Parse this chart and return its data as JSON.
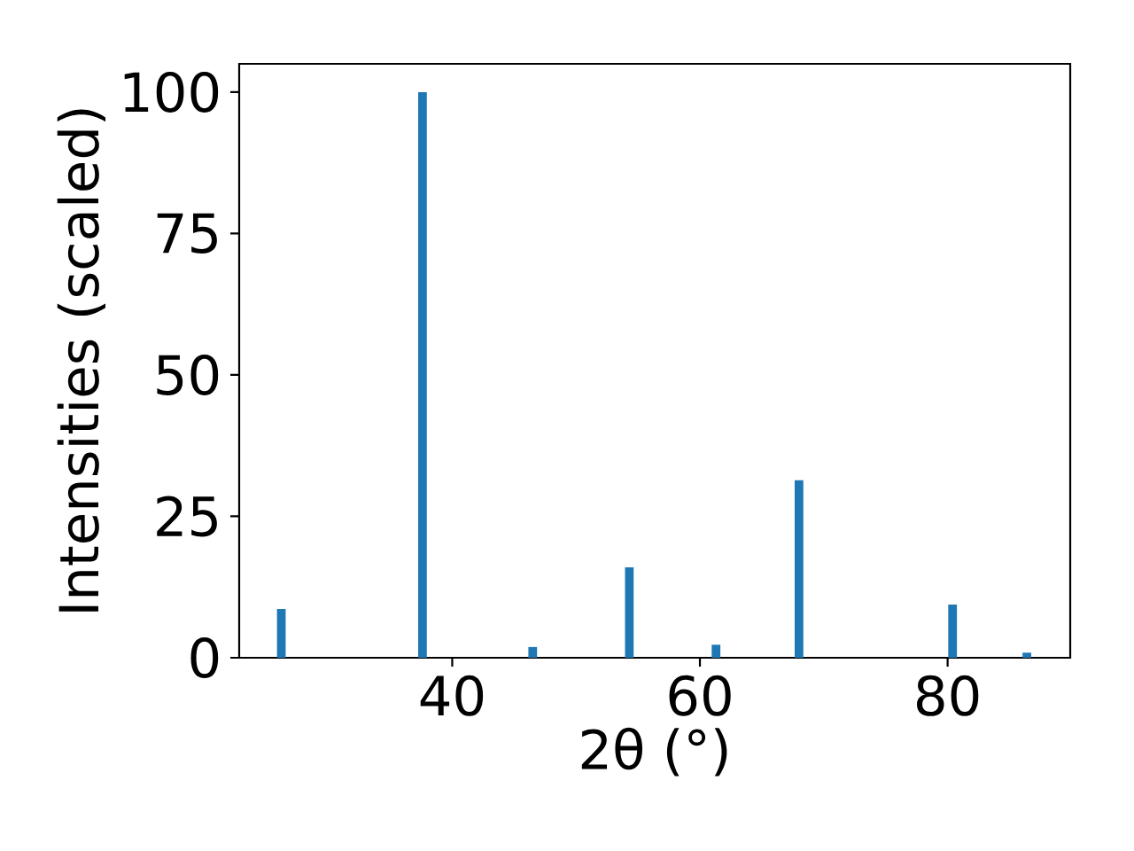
{
  "chart_data": {
    "type": "bar",
    "xlabel": "2θ (°)",
    "ylabel": "Intensities (scaled)",
    "x": [
      26.2,
      37.6,
      46.5,
      54.3,
      61.3,
      68.0,
      80.4,
      86.4
    ],
    "values": [
      8.6,
      100,
      1.9,
      16.0,
      2.3,
      31.4,
      9.4,
      0.9
    ],
    "color": "#1f77b4",
    "xlim": [
      22.8,
      89.9
    ],
    "ylim": [
      0,
      105
    ],
    "xticks": [
      40,
      60,
      80
    ],
    "yticks": [
      0,
      25,
      50,
      75,
      100
    ],
    "grid": false
  }
}
